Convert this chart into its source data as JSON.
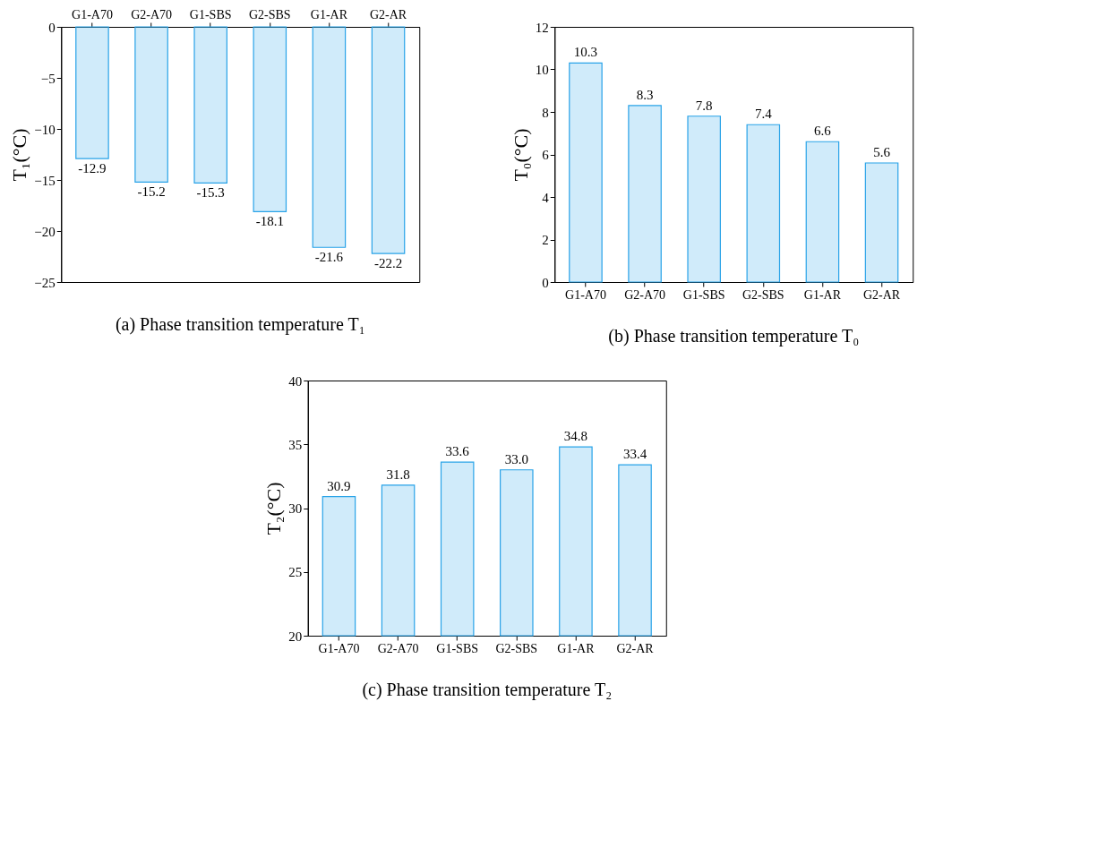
{
  "chart_data": [
    {
      "type": "bar",
      "title": "(a) Phase transition temperature T₁",
      "ylabel": "T₁(°C)",
      "categories": [
        "G1-A70",
        "G2-A70",
        "G1-SBS",
        "G2-SBS",
        "G1-AR",
        "G2-AR"
      ],
      "values": [
        -12.9,
        -15.2,
        -15.3,
        -18.1,
        -21.6,
        -22.2
      ],
      "color": "#29a3e8",
      "ylim": [
        -25,
        0
      ],
      "yticks": [
        -25,
        -20,
        -15,
        -10,
        -5,
        0
      ],
      "data_labels": true,
      "grid": false
    },
    {
      "type": "bar",
      "title": "(b) Phase transition temperature T₀",
      "ylabel": "T₀(°C)",
      "categories": [
        "G1-A70",
        "G2-A70",
        "G1-SBS",
        "G2-SBS",
        "G1-AR",
        "G2-AR"
      ],
      "values": [
        10.3,
        8.3,
        7.8,
        7.4,
        6.6,
        5.6
      ],
      "color": "#29a3e8",
      "ylim": [
        0,
        12
      ],
      "yticks": [
        0,
        2,
        4,
        6,
        8,
        10,
        12
      ],
      "data_labels": true,
      "grid": false
    },
    {
      "type": "bar",
      "title": "(c) Phase transition temperature T₂",
      "ylabel": "T₂(°C)",
      "categories": [
        "G1-A70",
        "G2-A70",
        "G1-SBS",
        "G2-SBS",
        "G1-AR",
        "G2-AR"
      ],
      "values": [
        30.9,
        31.8,
        33.6,
        33.0,
        34.8,
        33.4
      ],
      "value_labels": [
        "30.9",
        "31.8",
        "33.6",
        "33.0",
        "34.8",
        "33.4"
      ],
      "color": "#29a3e8",
      "ylim": [
        20,
        40
      ],
      "yticks": [
        20,
        25,
        30,
        35,
        40
      ],
      "grid": false
    }
  ]
}
